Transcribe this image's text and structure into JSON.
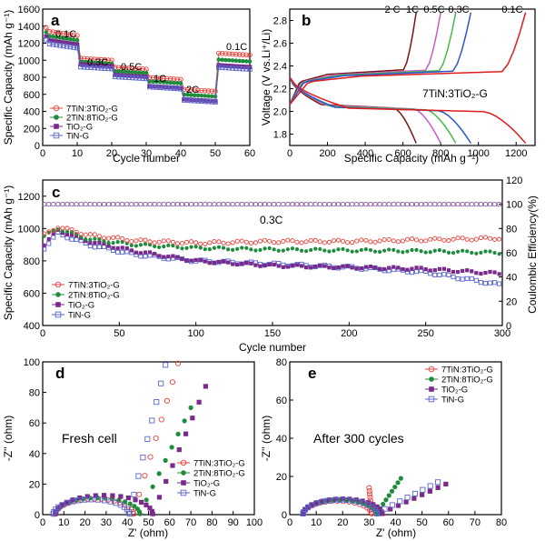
{
  "colors": {
    "ti7": "#e8403a",
    "ti2": "#1e8c3c",
    "tio2": "#7b2a8c",
    "tin": "#5a66cc"
  },
  "chart_data": [
    {
      "panel": "a",
      "type": "scatter",
      "xlabel": "Cycle number",
      "ylabel": "Specific Capacity (mAh g⁻¹)",
      "xlim": [
        0,
        60
      ],
      "ylim": [
        0,
        1600
      ],
      "xticks": [
        "0",
        "10",
        "20",
        "30",
        "40",
        "50",
        "60"
      ],
      "yticks": [
        "0",
        "200",
        "400",
        "600",
        "800",
        "1000",
        "1200",
        "1400",
        "1600"
      ],
      "annotations": [
        "0.1C",
        "0.3C",
        "0.5C",
        "1C",
        "2C",
        "0.1C"
      ],
      "legend": [
        "7TiN:3TiO₂-G",
        "2TiN:8TiO₂-G",
        "TiO₂-G",
        "TiN-G"
      ],
      "rates": [
        {
          "start": 1,
          "end": 10,
          "v": [
            1290,
            1235,
            1185,
            1145
          ]
        },
        {
          "start": 11,
          "end": 20,
          "v": [
            1000,
            960,
            930,
            900
          ]
        },
        {
          "start": 21,
          "end": 30,
          "v": [
            895,
            850,
            805,
            785
          ]
        },
        {
          "start": 31,
          "end": 40,
          "v": [
            775,
            730,
            675,
            665
          ]
        },
        {
          "start": 41,
          "end": 50,
          "v": [
            635,
            575,
            520,
            510
          ]
        },
        {
          "start": 51,
          "end": 60,
          "v": [
            1060,
            985,
            920,
            895
          ]
        }
      ]
    },
    {
      "panel": "b",
      "type": "line",
      "title": "7TiN:3TiO₂-G",
      "xlabel": "Specific Capacity (mAh g⁻¹)",
      "ylabel": "Voltage (V vs.Li⁺/Li)",
      "xlim": [
        0,
        1300
      ],
      "ylim": [
        1.7,
        2.9
      ],
      "xticks": [
        "0",
        "200",
        "400",
        "600",
        "800",
        "1000",
        "1200"
      ],
      "yticks": [
        "1.8",
        "2.0",
        "2.2",
        "2.4",
        "2.6",
        "2.8"
      ],
      "series": [
        {
          "name": "2 C",
          "color": "#7a1414",
          "cap": 670
        },
        {
          "name": "1C",
          "color": "#c65bc6",
          "cap": 800
        },
        {
          "name": "0.5C",
          "color": "#49b84a",
          "cap": 880
        },
        {
          "name": "0.3C",
          "color": "#2a55cc",
          "cap": 960
        },
        {
          "name": "0.1C",
          "color": "#e01d1d",
          "cap": 1250
        }
      ]
    },
    {
      "panel": "c",
      "type": "scatter",
      "annotation": "0.3C",
      "xlabel": "Cycle number",
      "ylabel": "Specific Capacity (mAh g⁻¹)",
      "ylabel_right": "Coulombic Efficiency(%)",
      "xlim": [
        0,
        300
      ],
      "ylim": [
        400,
        1300
      ],
      "ylim_right": [
        0,
        120
      ],
      "xticks": [
        "0",
        "50",
        "100",
        "150",
        "200",
        "250",
        "300"
      ],
      "yticks": [
        "400",
        "600",
        "800",
        "1000",
        "1200"
      ],
      "yticks_right": [
        "0",
        "20",
        "40",
        "60",
        "80",
        "100",
        "120"
      ],
      "legend": [
        "7TiN:3TiO₂-G",
        "2TiN:8TiO₂-G",
        "TiO₂-G",
        "TiN-G"
      ],
      "series": [
        {
          "name": "7TiN:3TiO₂-G",
          "x": [
            1,
            10,
            30,
            60,
            100,
            150,
            200,
            250,
            300
          ],
          "y": [
            960,
            1010,
            960,
            925,
            910,
            920,
            920,
            930,
            940
          ]
        },
        {
          "name": "2TiN:8TiO₂-G",
          "x": [
            1,
            10,
            30,
            60,
            100,
            150,
            200,
            250,
            300
          ],
          "y": [
            950,
            1000,
            935,
            900,
            880,
            870,
            865,
            860,
            850
          ]
        },
        {
          "name": "TiO₂-G",
          "x": [
            1,
            10,
            30,
            60,
            100,
            150,
            200,
            250,
            300
          ],
          "y": [
            900,
            990,
            920,
            860,
            800,
            770,
            760,
            750,
            720
          ]
        },
        {
          "name": "TiN-G",
          "x": [
            1,
            10,
            30,
            60,
            100,
            150,
            200,
            250,
            300
          ],
          "y": [
            880,
            970,
            900,
            840,
            800,
            780,
            760,
            730,
            650
          ]
        }
      ],
      "efficiency": 100
    },
    {
      "panel": "d",
      "type": "scatter",
      "annotation": "Fresh cell",
      "xlabel": "Z' (ohm)",
      "ylabel": "-Z'' (ohm)",
      "xlim": [
        0,
        100
      ],
      "ylim": [
        0,
        100
      ],
      "xticks": [
        "0",
        "10",
        "20",
        "30",
        "40",
        "50",
        "60",
        "70",
        "80",
        "90",
        "100"
      ],
      "yticks": [
        "0",
        "20",
        "40",
        "60",
        "80",
        "100"
      ],
      "legend": [
        "7TiN:3TiO₂-G",
        "2TiN:8TiO₂-G",
        "TiO₂-G",
        "TiN-G"
      ],
      "series": [
        {
          "name": "7TiN:3TiO₂-G",
          "rs": 6,
          "d": 37,
          "tail": 64
        },
        {
          "name": "2TiN:8TiO₂-G",
          "rs": 6,
          "d": 40,
          "tail": 70
        },
        {
          "name": "TiO₂-G",
          "rs": 6,
          "d": 46,
          "tail": 77
        },
        {
          "name": "TiN-G",
          "rs": 5,
          "d": 36,
          "tail": 58
        }
      ]
    },
    {
      "panel": "e",
      "type": "scatter",
      "annotation": "After 300 cycles",
      "xlabel": "Z' (ohm)",
      "ylabel": "-Z'' (ohm)",
      "xlim": [
        0,
        80
      ],
      "ylim": [
        0,
        80
      ],
      "xticks": [
        "0",
        "10",
        "20",
        "30",
        "40",
        "50",
        "60",
        "70",
        "80"
      ],
      "yticks": [
        "0",
        "20",
        "40",
        "60",
        "80"
      ],
      "legend": [
        "7TiN:3TiO₂-G",
        "2TiN:8TiO₂-G",
        "TiO₂-G",
        "TiN-G"
      ],
      "series": [
        {
          "name": "7TiN:3TiO₂-G",
          "rs": 5,
          "d": 26,
          "tail": 30
        },
        {
          "name": "2TiN:8TiO₂-G",
          "rs": 5,
          "d": 28,
          "tail": 42
        },
        {
          "name": "TiO₂-G",
          "rs": 5,
          "d": 30,
          "tail": 59
        },
        {
          "name": "TiN-G",
          "rs": 5,
          "d": 28,
          "tail": 56
        }
      ]
    }
  ]
}
